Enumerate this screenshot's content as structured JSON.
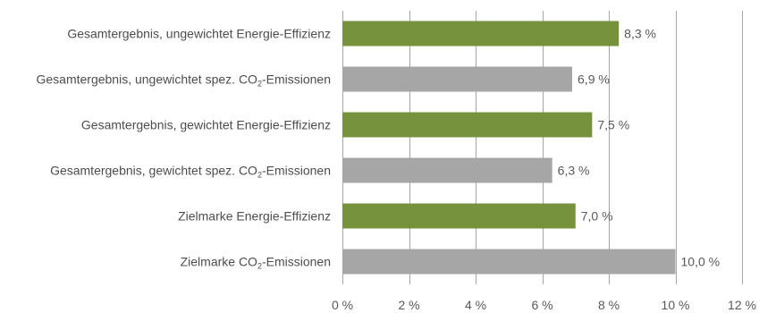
{
  "chart_data": {
    "type": "bar",
    "orientation": "horizontal",
    "categories": [
      {
        "pre": "Gesamtergebnis, ungewichtet Energie-Effizienz",
        "sub": "",
        "post": ""
      },
      {
        "pre": "Gesamtergebnis, ungewichtet spez. CO",
        "sub": "2",
        "post": "-Emissionen"
      },
      {
        "pre": "Gesamtergebnis, gewichtet Energie-Effizienz",
        "sub": "",
        "post": ""
      },
      {
        "pre": "Gesamtergebnis, gewichtet spez. CO",
        "sub": "2",
        "post": "-Emissionen"
      },
      {
        "pre": "Zielmarke Energie-Effizienz",
        "sub": "",
        "post": ""
      },
      {
        "pre": "Zielmarke CO",
        "sub": "2",
        "post": "-Emissionen"
      }
    ],
    "values": [
      8.3,
      6.9,
      7.5,
      6.3,
      7.0,
      10.0
    ],
    "value_labels": [
      "8,3 %",
      "6,9 %",
      "7,5 %",
      "6,3 %",
      "7,0 %",
      "10,0 %"
    ],
    "colors": [
      "#76923c",
      "#a6a6a6",
      "#76923c",
      "#a6a6a6",
      "#76923c",
      "#a6a6a6"
    ],
    "xlim": [
      0,
      12
    ],
    "xticks": [
      0,
      2,
      4,
      6,
      8,
      10,
      12
    ],
    "xtick_labels": [
      "0 %",
      "2 %",
      "4 %",
      "6 %",
      "8 %",
      "10 %",
      "12 %"
    ],
    "grid": "vertical",
    "legend": "none"
  }
}
